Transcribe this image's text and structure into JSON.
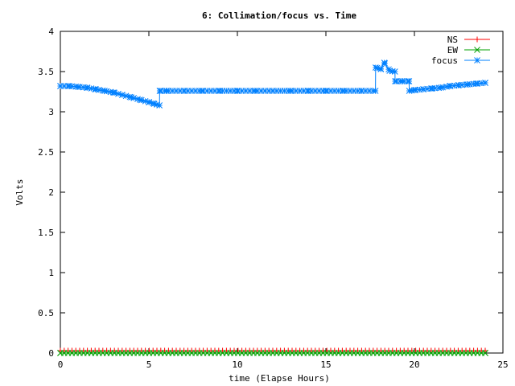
{
  "chart_data": {
    "type": "line",
    "title": "6: Collimation/focus vs. Time",
    "xlabel": "time (Elapse Hours)",
    "ylabel": "Volts",
    "xlim": [
      0,
      25
    ],
    "ylim": [
      0,
      4
    ],
    "xticks": [
      0,
      5,
      10,
      15,
      20,
      25
    ],
    "xtick_labels": [
      "0",
      "5",
      "10",
      "15",
      "20",
      "25"
    ],
    "yticks": [
      0,
      0.5,
      1,
      1.5,
      2,
      2.5,
      3,
      3.5,
      4
    ],
    "ytick_labels": [
      "0",
      "0.5",
      "1",
      "1.5",
      "2",
      "2.5",
      "3",
      "3.5",
      "4"
    ],
    "grid": false,
    "legend_position": "top-right",
    "series": [
      {
        "name": "NS",
        "color": "#ff0000",
        "marker": "plus",
        "x": [
          0.0,
          24.0
        ],
        "y": [
          0.03,
          0.03
        ]
      },
      {
        "name": "EW",
        "color": "#00a000",
        "marker": "cross",
        "x": [
          0.0,
          24.0
        ],
        "y": [
          0.0,
          0.0
        ]
      },
      {
        "name": "focus",
        "color": "#0080ff",
        "marker": "star",
        "x": [
          0.0,
          0.5,
          1.0,
          1.5,
          2.0,
          2.5,
          3.0,
          3.5,
          4.0,
          4.5,
          5.0,
          5.3,
          5.6,
          5.61,
          6.0,
          7.0,
          8.0,
          9.0,
          10.0,
          11.0,
          12.0,
          13.0,
          14.0,
          15.0,
          16.0,
          17.0,
          17.8,
          17.81,
          18.1,
          18.3,
          18.6,
          18.9,
          18.91,
          19.3,
          19.7,
          19.71,
          20.0,
          20.5,
          21.0,
          21.5,
          22.0,
          22.5,
          23.0,
          23.5,
          24.0
        ],
        "y": [
          3.32,
          3.32,
          3.31,
          3.3,
          3.28,
          3.26,
          3.24,
          3.21,
          3.18,
          3.15,
          3.12,
          3.1,
          3.08,
          3.26,
          3.26,
          3.26,
          3.26,
          3.26,
          3.26,
          3.26,
          3.26,
          3.26,
          3.26,
          3.26,
          3.26,
          3.26,
          3.26,
          3.55,
          3.53,
          3.61,
          3.51,
          3.5,
          3.38,
          3.38,
          3.38,
          3.26,
          3.27,
          3.28,
          3.29,
          3.3,
          3.32,
          3.33,
          3.34,
          3.35,
          3.36
        ]
      }
    ]
  }
}
